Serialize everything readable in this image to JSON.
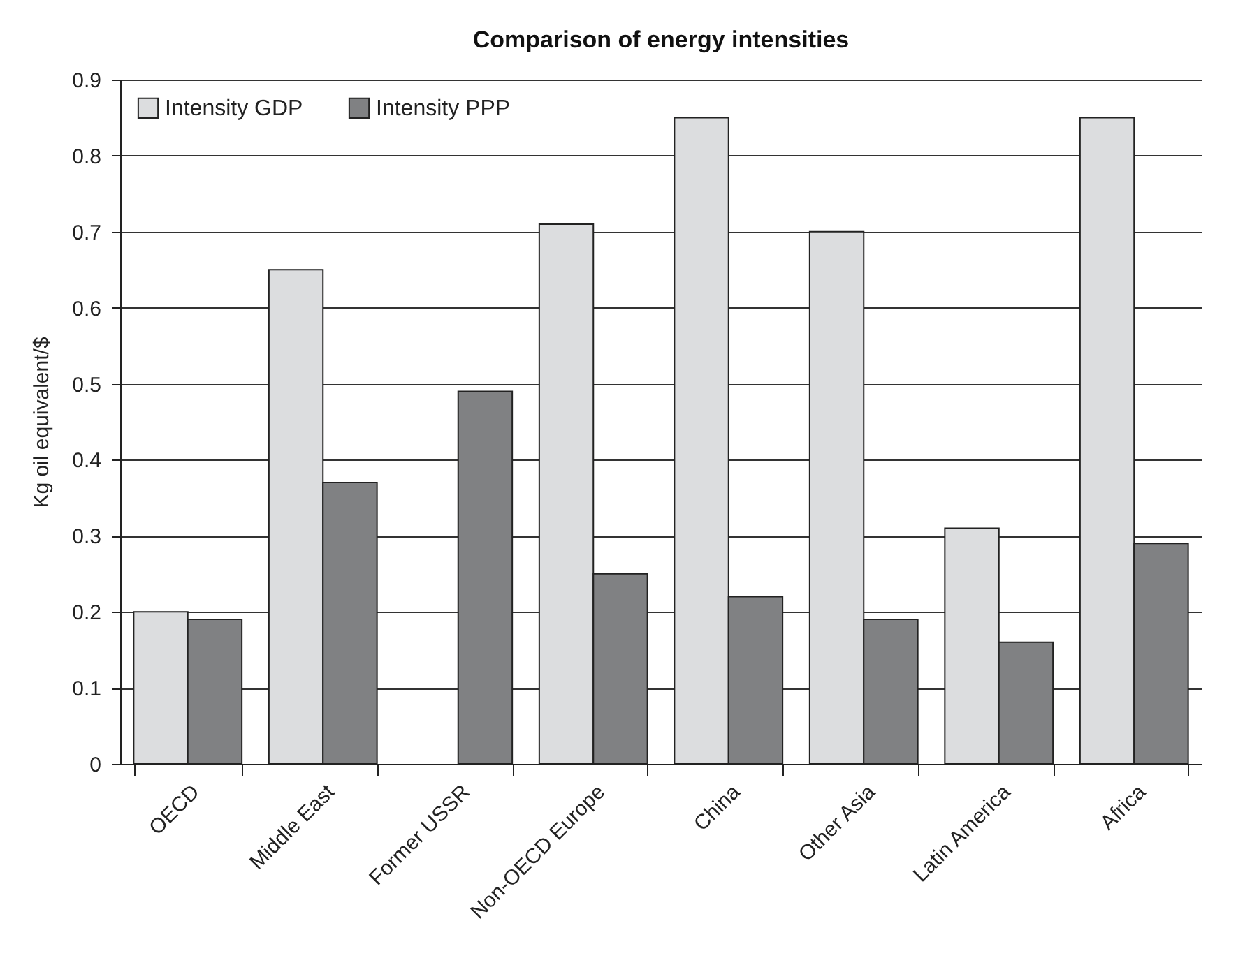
{
  "chart_data": {
    "type": "bar",
    "title": "Comparison of energy intensities",
    "ylabel": "Kg oil equivalent/$",
    "categories": [
      "OECD",
      "Middle East",
      "Former USSR",
      "Non-OECD Europe",
      "China",
      "Other Asia",
      "Latin America",
      "Africa"
    ],
    "series": [
      {
        "name": "Intensity GDP",
        "color": "#dcdddf",
        "values": [
          0.2,
          0.65,
          null,
          0.71,
          0.85,
          0.7,
          0.31,
          0.85
        ]
      },
      {
        "name": "Intensity PPP",
        "color": "#808183",
        "values": [
          0.19,
          0.37,
          0.49,
          0.25,
          0.22,
          0.19,
          0.16,
          0.29
        ]
      }
    ],
    "ylim": [
      0,
      0.9
    ],
    "yticks": [
      0,
      0.1,
      0.2,
      0.3,
      0.4,
      0.5,
      0.6,
      0.7,
      0.8,
      0.9
    ],
    "grid": "y",
    "legend": "top left"
  }
}
